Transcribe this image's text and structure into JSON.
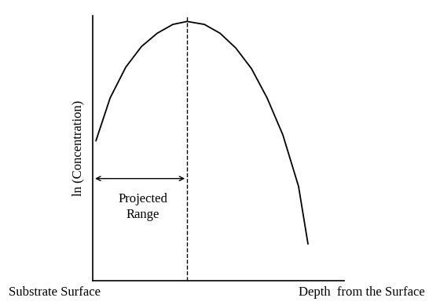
{
  "chart_data": {
    "type": "line",
    "x": [
      0.1,
      0.55,
      1.05,
      1.55,
      2.05,
      2.55,
      3.0,
      3.55,
      4.05,
      4.55,
      5.05,
      5.55,
      6.05,
      6.55,
      6.85
    ],
    "values": [
      4.75,
      6.2,
      7.25,
      7.95,
      8.4,
      8.7,
      8.8,
      8.7,
      8.4,
      7.9,
      7.2,
      6.2,
      4.95,
      3.2,
      1.25
    ],
    "color": "#000000",
    "line_style": "solid",
    "y_label": "ln (Concentration)",
    "x_label": "Depth  from the Surface",
    "annotations": [
      "Substrate Surface"
    ],
    "projected_range": {
      "value": 3.0,
      "label": "Projected\nRange"
    },
    "xlim": [
      0,
      8
    ],
    "ylim": [
      0,
      9
    ],
    "tick_labels": false
  }
}
